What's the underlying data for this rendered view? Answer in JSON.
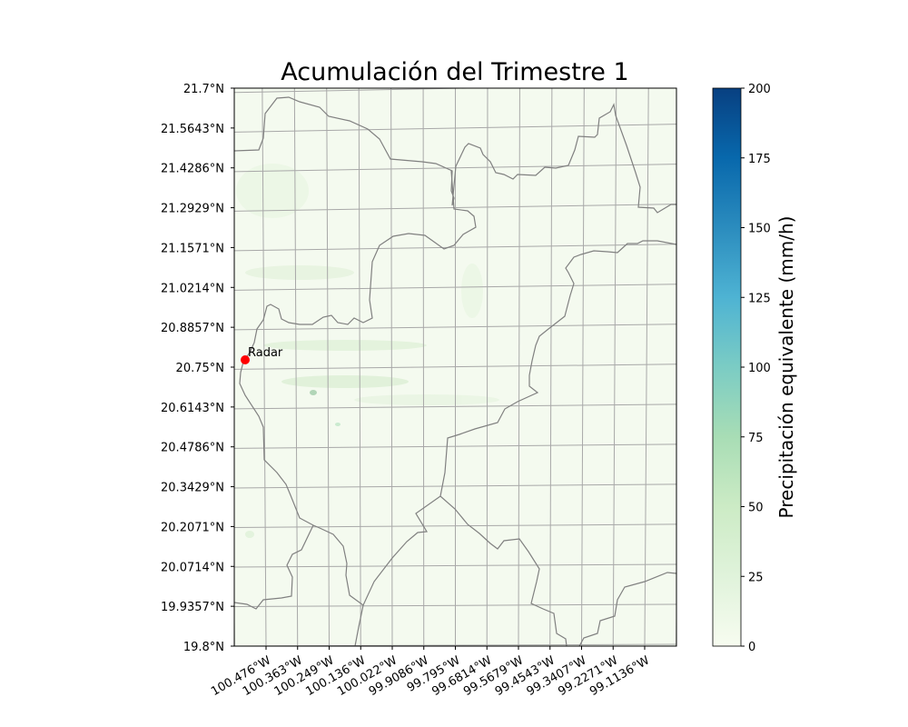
{
  "title": "Acumulación del  Trimestre 1",
  "lat_ticks": [
    "21.7°N",
    "21.5643°N",
    "21.4286°N",
    "21.2929°N",
    "21.1571°N",
    "21.0214°N",
    "20.8857°N",
    "20.75°N",
    "20.6143°N",
    "20.4786°N",
    "20.3429°N",
    "20.2071°N",
    "20.0714°N",
    "19.9357°N",
    "19.8°N"
  ],
  "lon_ticks": [
    "100.476°W",
    "100.363°W",
    "100.249°W",
    "100.136°W",
    "100.022°W",
    "99.9086°W",
    "99.795°W",
    "99.6814°W",
    "99.5679°W",
    "99.4543°W",
    "99.3407°W",
    "99.2271°W",
    "99.1136°W"
  ],
  "radar": {
    "label": "Radar",
    "color": "#ff0000"
  },
  "colorbar": {
    "label": "Precipitación equivalente (mm/h)",
    "ticks": [
      "0",
      "25",
      "50",
      "75",
      "100",
      "125",
      "150",
      "175",
      "200"
    ],
    "min": 0,
    "max": 200,
    "colormap": "GnBu",
    "colors": [
      "#f7fcf0",
      "#e0f3db",
      "#ccebc5",
      "#a8ddb5",
      "#7bccc4",
      "#4eb3d3",
      "#2b8cbe",
      "#0868ac",
      "#084081"
    ]
  },
  "colors": {
    "background": "#f4faef",
    "gridline": "#a8a8a8",
    "boundary": "#808080"
  }
}
